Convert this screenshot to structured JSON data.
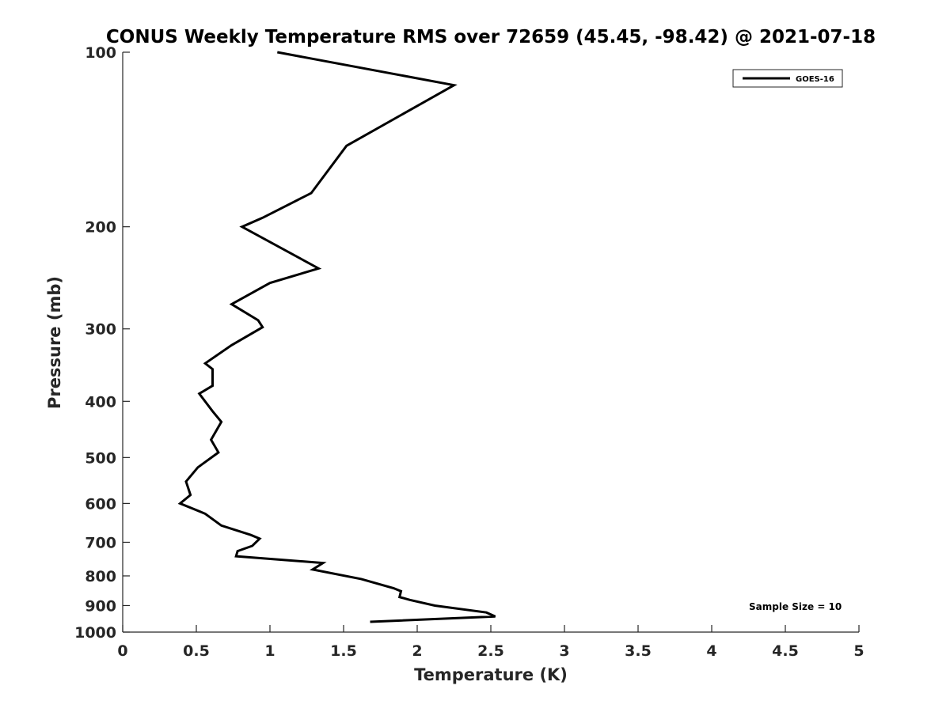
{
  "chart_data": {
    "type": "line",
    "title": "CONUS Weekly Temperature RMS over 72659 (45.45, -98.42) @ 2021-07-18",
    "xlabel": "Temperature (K)",
    "ylabel": "Pressure (mb)",
    "xlim": [
      0,
      5
    ],
    "ylim": [
      1000,
      100
    ],
    "yscale": "log",
    "y_reversed": true,
    "grid": false,
    "legend_position": "top-right",
    "x_ticks": [
      "0",
      "0.5",
      "1",
      "1.5",
      "2",
      "2.5",
      "3",
      "3.5",
      "4",
      "4.5",
      "5"
    ],
    "y_ticks": [
      "100",
      "200",
      "300",
      "400",
      "500",
      "600",
      "700",
      "800",
      "900",
      "1000"
    ],
    "series": [
      {
        "name": "GOES-16",
        "color": "#000000",
        "x": [
          1.05,
          2.25,
          1.52,
          1.28,
          0.95,
          0.81,
          1.33,
          1.0,
          0.74,
          0.92,
          0.95,
          0.74,
          0.56,
          0.61,
          0.61,
          0.52,
          0.61,
          0.67,
          0.6,
          0.65,
          0.51,
          0.43,
          0.46,
          0.39,
          0.56,
          0.67,
          0.87,
          0.93,
          0.88,
          0.78,
          0.77,
          1.36,
          1.29,
          1.62,
          1.84,
          1.89,
          1.88,
          1.95,
          2.12,
          2.47,
          2.53,
          1.68
        ],
        "y": [
          100,
          114,
          145,
          175,
          193,
          200,
          236,
          250,
          272,
          290,
          298,
          320,
          344,
          352,
          376,
          388,
          416,
          434,
          466,
          490,
          520,
          550,
          580,
          600,
          625,
          655,
          680,
          690,
          710,
          725,
          740,
          760,
          780,
          810,
          840,
          850,
          870,
          880,
          900,
          925,
          940,
          960
        ]
      }
    ],
    "annotations": [
      "Sample Size = 10"
    ]
  }
}
